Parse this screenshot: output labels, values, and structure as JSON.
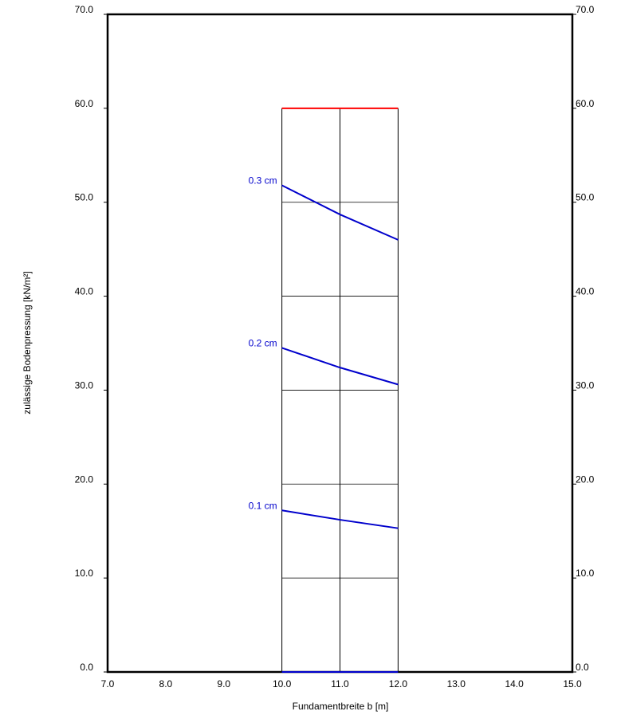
{
  "chart_data": {
    "type": "line",
    "xlabel": "Fundamentbreite b [m]",
    "ylabel": "zulässige Bodenpressung [kN/m²]",
    "xlim": [
      7,
      15
    ],
    "xticks": [
      {
        "value": 7,
        "label": "7.0"
      },
      {
        "value": 8,
        "label": "8.0"
      },
      {
        "value": 9,
        "label": "9.0"
      },
      {
        "value": 10,
        "label": "10.0"
      },
      {
        "value": 11,
        "label": "11.0"
      },
      {
        "value": 12,
        "label": "12.0"
      },
      {
        "value": 13,
        "label": "13.0"
      },
      {
        "value": 14,
        "label": "14.0"
      },
      {
        "value": 15,
        "label": "15.0"
      }
    ],
    "ylim": [
      0,
      70
    ],
    "yticks": [
      {
        "value": 0,
        "label": "0.0"
      },
      {
        "value": 10,
        "label": "10.0"
      },
      {
        "value": 20,
        "label": "20.0"
      },
      {
        "value": 30,
        "label": "30.0"
      },
      {
        "value": 40,
        "label": "40.0"
      },
      {
        "value": 50,
        "label": "50.0"
      },
      {
        "value": 60,
        "label": "60.0"
      },
      {
        "value": 70,
        "label": "70.0"
      }
    ],
    "grid_x": [
      10,
      11,
      12
    ],
    "grid_ylim": [
      0,
      60
    ],
    "series": [
      {
        "color": "#ff0000",
        "x": [
          10,
          12
        ],
        "values": [
          60,
          60
        ]
      },
      {
        "name": "0.3 cm",
        "color": "#0000cc",
        "x": [
          10,
          11,
          12
        ],
        "values": [
          51.8,
          48.7,
          46.0
        ]
      },
      {
        "name": "0.2 cm",
        "color": "#0000cc",
        "x": [
          10,
          11,
          12
        ],
        "values": [
          34.5,
          32.4,
          30.6
        ]
      },
      {
        "name": "0.1 cm",
        "color": "#0000cc",
        "x": [
          10,
          11,
          12
        ],
        "values": [
          17.2,
          16.2,
          15.3
        ]
      },
      {
        "color": "#0000cc",
        "x": [
          10,
          12
        ],
        "values": [
          0,
          0
        ]
      }
    ]
  }
}
